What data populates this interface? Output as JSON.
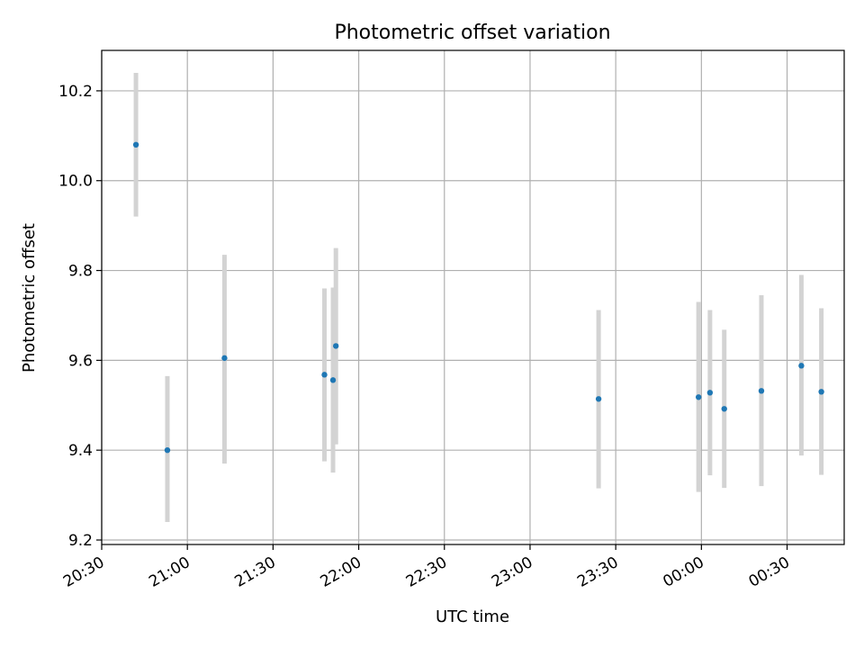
{
  "chart_data": {
    "type": "scatter",
    "title": "Photometric offset variation",
    "xlabel": "UTC time",
    "ylabel": "Photometric offset",
    "x_axis_type": "time",
    "xlim": [
      "20:30",
      "00:50"
    ],
    "ylim": [
      9.19,
      10.29
    ],
    "grid": true,
    "xticks": [
      "20:30",
      "21:00",
      "21:30",
      "22:00",
      "22:30",
      "23:00",
      "23:30",
      "00:00",
      "00:30"
    ],
    "yticks": [
      9.2,
      9.4,
      9.6,
      9.8,
      10.0,
      10.2
    ],
    "series": [
      {
        "marker_color": "#1f77b4",
        "errorbar_color": "#d3d3d3",
        "points": [
          {
            "t": "20:42",
            "y": 10.08,
            "err_low": 9.92,
            "err_high": 10.24
          },
          {
            "t": "20:53",
            "y": 9.4,
            "err_low": 9.24,
            "err_high": 9.565
          },
          {
            "t": "21:13",
            "y": 9.605,
            "err_low": 9.37,
            "err_high": 9.835
          },
          {
            "t": "21:48",
            "y": 9.568,
            "err_low": 9.375,
            "err_high": 9.76
          },
          {
            "t": "21:51",
            "y": 9.556,
            "err_low": 9.35,
            "err_high": 9.762
          },
          {
            "t": "21:52",
            "y": 9.632,
            "err_low": 9.413,
            "err_high": 9.85
          },
          {
            "t": "23:24",
            "y": 9.514,
            "err_low": 9.315,
            "err_high": 9.712
          },
          {
            "t": "23:59",
            "y": 9.518,
            "err_low": 9.307,
            "err_high": 9.73
          },
          {
            "t": "00:03",
            "y": 9.528,
            "err_low": 9.344,
            "err_high": 9.712
          },
          {
            "t": "00:08",
            "y": 9.492,
            "err_low": 9.316,
            "err_high": 9.668
          },
          {
            "t": "00:21",
            "y": 9.532,
            "err_low": 9.32,
            "err_high": 9.745
          },
          {
            "t": "00:35",
            "y": 9.588,
            "err_low": 9.388,
            "err_high": 9.79
          },
          {
            "t": "00:42",
            "y": 9.53,
            "err_low": 9.345,
            "err_high": 9.716
          }
        ]
      }
    ]
  }
}
